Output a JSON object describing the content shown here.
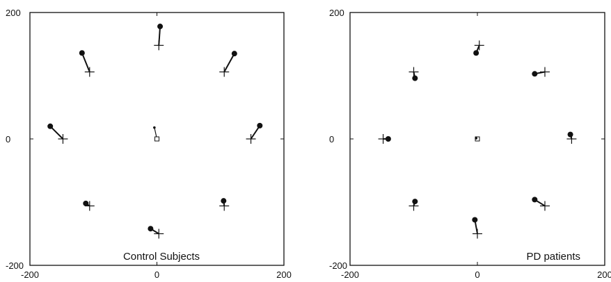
{
  "chart_data": [
    {
      "type": "scatter",
      "title": "Control Subjects",
      "xlabel": "",
      "ylabel": "",
      "xlim": [
        -200,
        200
      ],
      "ylim": [
        -200,
        200
      ],
      "x_ticks": [
        "-200",
        "0",
        "200"
      ],
      "y_ticks": [
        "200",
        "0",
        "-200"
      ],
      "grid": false,
      "targets": [
        [
          0,
          0
        ],
        [
          3,
          148
        ],
        [
          106,
          106
        ],
        [
          148,
          0
        ],
        [
          106,
          -106
        ],
        [
          3,
          -150
        ],
        [
          -106,
          -106
        ],
        [
          -148,
          0
        ],
        [
          -106,
          106
        ]
      ],
      "responses": [
        [
          -4,
          18
        ],
        [
          5,
          178
        ],
        [
          122,
          135
        ],
        [
          162,
          21
        ],
        [
          105,
          -98
        ],
        [
          -10,
          -142
        ],
        [
          -112,
          -102
        ],
        [
          -168,
          20
        ],
        [
          -118,
          136
        ]
      ]
    },
    {
      "type": "scatter",
      "title": "PD patients",
      "xlabel": "",
      "ylabel": "",
      "xlim": [
        -200,
        200
      ],
      "ylim": [
        -200,
        200
      ],
      "x_ticks": [
        "-200",
        "0",
        "200"
      ],
      "y_ticks": [
        "200",
        "0",
        "-200"
      ],
      "grid": false,
      "targets": [
        [
          0,
          0
        ],
        [
          3,
          148
        ],
        [
          106,
          106
        ],
        [
          148,
          0
        ],
        [
          106,
          -106
        ],
        [
          0,
          -150
        ],
        [
          -100,
          -106
        ],
        [
          -148,
          0
        ],
        [
          -100,
          106
        ]
      ],
      "responses": [
        [
          -2,
          1
        ],
        [
          -2,
          136
        ],
        [
          90,
          103
        ],
        [
          146,
          7
        ],
        [
          90,
          -96
        ],
        [
          -4,
          -128
        ],
        [
          -98,
          -99
        ],
        [
          -140,
          0
        ],
        [
          -98,
          96
        ]
      ]
    }
  ]
}
